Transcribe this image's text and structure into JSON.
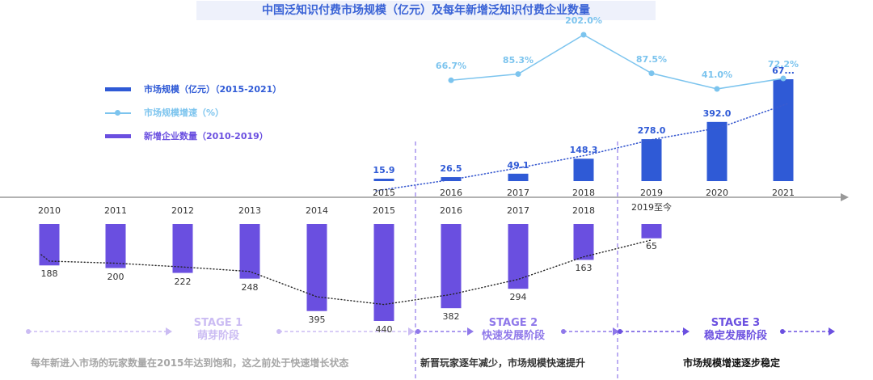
{
  "header": {
    "title": "中国泛知识付费市场规模（亿元）及每年新增泛知识付费企业数量"
  },
  "legend": {
    "items": [
      {
        "label": "市场规模（亿元）（2015-2021）",
        "color": "#2f5ad6",
        "kind": "bar"
      },
      {
        "label": "市场规模增速（%）",
        "color": "#7cc4ee",
        "kind": "line"
      },
      {
        "label": "新增企业数量（2010-2019）",
        "color": "#6a4fe0",
        "kind": "bar"
      }
    ]
  },
  "colors": {
    "market": "#2f5ad6",
    "growth": "#7cc4ee",
    "new": "#6a4fe0",
    "stage1": "#cbbcf3",
    "stage2": "#8f78ea",
    "stage3": "#6b50e0",
    "axis": "#999999"
  },
  "chart_data": {
    "type": "bar",
    "upper": {
      "x": [
        "2015",
        "2016",
        "2017",
        "2018",
        "2019",
        "2020",
        "2021"
      ],
      "series": [
        {
          "name": "市场规模（亿元）（2015-2021）",
          "values": [
            15.9,
            26.5,
            49.1,
            148.3,
            278.0,
            392.0,
            675
          ],
          "labels": [
            "15.9",
            "26.5",
            "49.1",
            "148.3",
            "278.0",
            "392.0",
            "67..."
          ]
        },
        {
          "name": "市场规模增速（%）",
          "type": "line",
          "x": [
            "2016",
            "2017",
            "2018",
            "2019",
            "2020",
            "2021"
          ],
          "values": [
            66.7,
            85.3,
            202.0,
            87.5,
            41.0,
            72.2
          ],
          "labels": [
            "66.7%",
            "85.3%",
            "202.0%",
            "87.5%",
            "41.0%",
            "72.2%"
          ]
        }
      ]
    },
    "lower": {
      "x": [
        "2010",
        "2011",
        "2012",
        "2013",
        "2014",
        "2015",
        "2016",
        "2017",
        "2018",
        "2019至今"
      ],
      "series": [
        {
          "name": "新增企业数量（2010-2019）",
          "values": [
            188,
            200,
            222,
            248,
            395,
            440,
            382,
            294,
            163,
            65
          ]
        }
      ]
    }
  },
  "stages": [
    {
      "title": "STAGE 1",
      "subtitle": "萌芽阶段",
      "caption": "每年新进入市场的玩家数量在2015年达到饱和，这之前处于快速增长状态"
    },
    {
      "title": "STAGE 2",
      "subtitle": "快速发展阶段",
      "caption": "新晋玩家逐年减少，市场规模快速提升"
    },
    {
      "title": "STAGE 3",
      "subtitle": "稳定发展阶段",
      "caption": "市场规模增速逐步稳定"
    }
  ]
}
